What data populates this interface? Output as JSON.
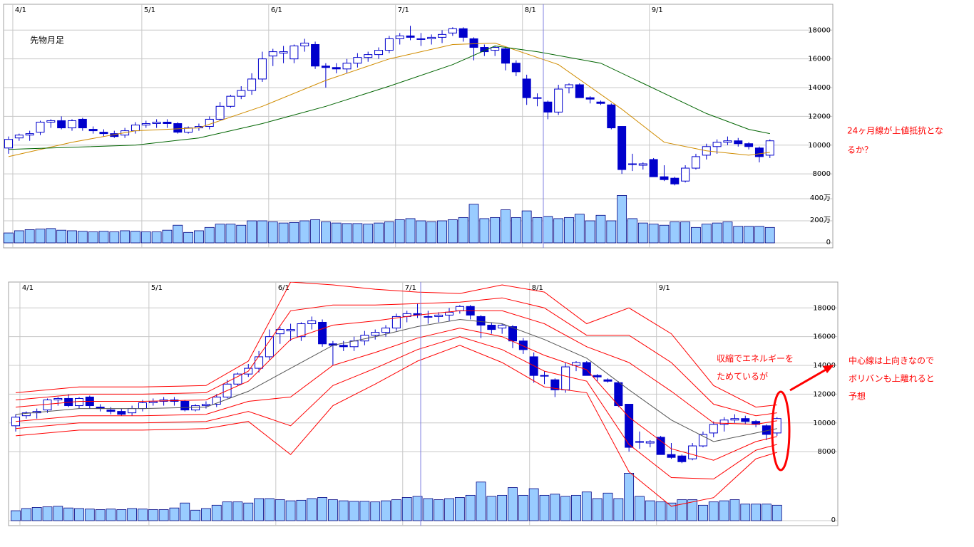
{
  "chart_data": [
    {
      "type": "candlestick",
      "xticks": [
        {
          "value": 0.4,
          "label": "4/1"
        },
        {
          "value": 12.6,
          "label": "5/1"
        },
        {
          "value": 24.6,
          "label": "6/1"
        },
        {
          "value": 36.6,
          "label": "7/1"
        },
        {
          "value": 48.6,
          "label": "8/1"
        },
        {
          "value": 60.6,
          "label": "9/1"
        }
      ],
      "ylim": [
        3200,
        19700
      ],
      "yticks": [
        8000,
        10000,
        12000,
        14000,
        16000,
        18000
      ],
      "y2lim": [
        0,
        2150
      ],
      "y2ticks": [
        0,
        {
          "value": 200,
          "label": "200万"
        },
        {
          "value": 400,
          "label": "400万"
        }
      ],
      "grid": true,
      "grid_color": "#c8c8c8",
      "candle_color": "#0000cc",
      "up_fill": "#ffffff",
      "volume_color": "#99ccff",
      "open": [
        9800,
        10500,
        10700,
        10900,
        11600,
        11700,
        11200,
        11800,
        11100,
        10900,
        10800,
        10700,
        11000,
        11400,
        11500,
        11600,
        11500,
        10900,
        11200,
        11300,
        11800,
        12700,
        13400,
        13800,
        14600,
        16200,
        16400,
        16000,
        16900,
        17000,
        15500,
        15400,
        15300,
        15700,
        16100,
        16300,
        16600,
        17400,
        17600,
        17400,
        17400,
        17500,
        17800,
        18100,
        17400,
        16800,
        16600,
        16700,
        15700,
        14600,
        13300,
        13000,
        12300,
        14000,
        14200,
        13300,
        13000,
        12800,
        11300,
        8700,
        8600,
        9000,
        7800,
        7700,
        7500,
        8400,
        9300,
        9900,
        10200,
        10300,
        10100,
        9800,
        9300
      ],
      "high": [
        10600,
        10800,
        11000,
        11700,
        11800,
        12000,
        11800,
        11900,
        11300,
        11100,
        11000,
        11200,
        11600,
        11700,
        11800,
        11800,
        11600,
        11300,
        11500,
        12000,
        13000,
        13500,
        14100,
        15000,
        16500,
        16700,
        16900,
        17000,
        17400,
        17200,
        15700,
        15700,
        16000,
        16400,
        16500,
        16800,
        17600,
        17800,
        18300,
        17800,
        17700,
        18000,
        18200,
        18200,
        17500,
        17000,
        16900,
        16800,
        15900,
        14900,
        13600,
        13100,
        14200,
        14300,
        14300,
        13400,
        13100,
        12900,
        11300,
        9400,
        8800,
        9100,
        8600,
        7800,
        8600,
        9400,
        10100,
        10400,
        10600,
        10500,
        10200,
        9900,
        10400
      ],
      "low": [
        9400,
        10300,
        10300,
        10700,
        11200,
        11100,
        11000,
        11000,
        10800,
        10600,
        10500,
        10500,
        10800,
        11200,
        11200,
        11200,
        10800,
        10800,
        11000,
        11100,
        11700,
        12600,
        13200,
        13500,
        14400,
        15500,
        15700,
        15700,
        16500,
        15300,
        14000,
        15000,
        15000,
        15400,
        15800,
        16000,
        16400,
        17000,
        17300,
        16900,
        17000,
        17100,
        17600,
        17200,
        15900,
        16200,
        16200,
        15200,
        14800,
        12800,
        12700,
        11800,
        12100,
        13600,
        13300,
        12900,
        12800,
        11100,
        8000,
        8200,
        8300,
        7800,
        7500,
        7200,
        7400,
        8300,
        9000,
        9400,
        10000,
        9900,
        9700,
        8800,
        9100
      ],
      "close": [
        10400,
        10700,
        10800,
        11600,
        11700,
        11200,
        11700,
        11200,
        11000,
        10800,
        10600,
        11000,
        11400,
        11500,
        11600,
        11500,
        10900,
        11200,
        11300,
        11800,
        12700,
        13400,
        13800,
        14600,
        16000,
        16500,
        16500,
        16900,
        17100,
        15500,
        15400,
        15300,
        15700,
        16100,
        16300,
        16600,
        17400,
        17600,
        17500,
        17400,
        17500,
        17700,
        18100,
        17500,
        16800,
        16500,
        16800,
        15700,
        15100,
        13300,
        13300,
        12300,
        13900,
        14200,
        13300,
        13200,
        12900,
        11200,
        8300,
        8700,
        8700,
        7800,
        7600,
        7300,
        8400,
        9200,
        9900,
        10200,
        10300,
        10100,
        9900,
        9200,
        10300
      ],
      "volume": [
        90,
        110,
        120,
        125,
        130,
        115,
        110,
        105,
        100,
        105,
        100,
        110,
        105,
        100,
        100,
        115,
        160,
        95,
        110,
        140,
        170,
        170,
        160,
        200,
        200,
        190,
        180,
        185,
        200,
        210,
        190,
        180,
        175,
        175,
        170,
        180,
        190,
        210,
        220,
        200,
        190,
        200,
        210,
        230,
        350,
        220,
        230,
        300,
        230,
        290,
        230,
        240,
        220,
        230,
        260,
        200,
        250,
        200,
        430,
        220,
        180,
        170,
        160,
        190,
        190,
        140,
        170,
        180,
        190,
        150,
        150,
        150,
        140
      ],
      "lines": [
        {
          "color": "#d08c00",
          "x": [
            0,
            6,
            12,
            18,
            24,
            30,
            36,
            42,
            46,
            52,
            58,
            62,
            66,
            70,
            72
          ],
          "values": [
            9200,
            10200,
            11000,
            11200,
            12700,
            14500,
            16000,
            17000,
            17100,
            15600,
            12500,
            10200,
            9600,
            9300,
            9500
          ]
        },
        {
          "color": "#006400",
          "x": [
            0,
            12,
            18,
            24,
            30,
            36,
            42,
            46,
            50,
            56,
            60,
            66,
            70,
            72
          ],
          "values": [
            9700,
            10000,
            10500,
            11500,
            12700,
            14100,
            15600,
            16900,
            16500,
            15700,
            14300,
            12200,
            11100,
            10800
          ]
        }
      ],
      "annotations": [
        {
          "color": "#000000",
          "lines": [
            "先物月足"
          ]
        },
        {
          "color": "#ff0000",
          "lines": [
            "24ヶ月線が上値抵抗とな",
            "るか？"
          ]
        }
      ]
    },
    {
      "type": "candlestick",
      "xticks": [
        {
          "value": 0.4,
          "label": "4/1"
        },
        {
          "value": 12.6,
          "label": "5/1"
        },
        {
          "value": 24.6,
          "label": "6/1"
        },
        {
          "value": 36.6,
          "label": "7/1"
        },
        {
          "value": 48.6,
          "label": "8/1"
        },
        {
          "value": 60.6,
          "label": "9/1"
        }
      ],
      "ylim": [
        3200,
        19700
      ],
      "yticks": [
        8000,
        10000,
        12000,
        14000,
        16000,
        18000
      ],
      "y2lim": [
        0,
        2150
      ],
      "y2ticks": [
        0
      ],
      "grid": true,
      "grid_color": "#c8c8c8",
      "candle_color": "#0000cc",
      "up_fill": "#ffffff",
      "volume_color": "#99ccff",
      "open": [
        9800,
        10500,
        10700,
        10900,
        11600,
        11700,
        11200,
        11800,
        11100,
        10900,
        10800,
        10700,
        11000,
        11400,
        11500,
        11600,
        11500,
        10900,
        11200,
        11300,
        11800,
        12700,
        13400,
        13800,
        14600,
        16200,
        16400,
        16000,
        16900,
        17000,
        15500,
        15400,
        15300,
        15700,
        16100,
        16300,
        16600,
        17400,
        17600,
        17400,
        17400,
        17500,
        17800,
        18100,
        17400,
        16800,
        16600,
        16700,
        15700,
        14600,
        13300,
        13000,
        12300,
        14000,
        14200,
        13300,
        13000,
        12800,
        11300,
        8700,
        8600,
        9000,
        7800,
        7700,
        7500,
        8400,
        9300,
        9900,
        10200,
        10300,
        10100,
        9800,
        9300
      ],
      "high": [
        10600,
        10800,
        11000,
        11700,
        11800,
        12000,
        11800,
        11900,
        11300,
        11100,
        11000,
        11200,
        11600,
        11700,
        11800,
        11800,
        11600,
        11300,
        11500,
        12000,
        13000,
        13500,
        14100,
        15000,
        16500,
        16700,
        16900,
        17000,
        17400,
        17200,
        15700,
        15700,
        16000,
        16400,
        16500,
        16800,
        17600,
        17800,
        18300,
        17800,
        17700,
        18000,
        18200,
        18200,
        17500,
        17000,
        16900,
        16800,
        15900,
        14900,
        13600,
        13100,
        14200,
        14300,
        14300,
        13400,
        13100,
        12900,
        11300,
        9400,
        8800,
        9100,
        8600,
        7800,
        8600,
        9400,
        10100,
        10400,
        10600,
        10500,
        10200,
        9900,
        10400
      ],
      "low": [
        9400,
        10300,
        10300,
        10700,
        11200,
        11100,
        11000,
        11000,
        10800,
        10600,
        10500,
        10500,
        10800,
        11200,
        11200,
        11200,
        10800,
        10800,
        11000,
        11100,
        11700,
        12600,
        13200,
        13500,
        14400,
        15500,
        15700,
        15700,
        16500,
        15300,
        14000,
        15000,
        15000,
        15400,
        15800,
        16000,
        16400,
        17000,
        17300,
        16900,
        17000,
        17100,
        17600,
        17200,
        15900,
        16200,
        16200,
        15200,
        14800,
        12800,
        12700,
        11800,
        12100,
        13600,
        13300,
        12900,
        12800,
        11100,
        8000,
        8200,
        8300,
        7800,
        7500,
        7200,
        7400,
        8300,
        9000,
        9400,
        10000,
        9900,
        9700,
        8800,
        9100
      ],
      "close": [
        10400,
        10700,
        10800,
        11600,
        11700,
        11200,
        11700,
        11200,
        11000,
        10800,
        10600,
        11000,
        11400,
        11500,
        11600,
        11500,
        10900,
        11200,
        11300,
        11800,
        12700,
        13400,
        13800,
        14600,
        16000,
        16500,
        16500,
        16900,
        17100,
        15500,
        15400,
        15300,
        15700,
        16100,
        16300,
        16600,
        17400,
        17600,
        17500,
        17400,
        17500,
        17700,
        18100,
        17500,
        16800,
        16500,
        16800,
        15700,
        15100,
        13300,
        13300,
        12300,
        13900,
        14200,
        13300,
        13200,
        12900,
        11200,
        8300,
        8700,
        8700,
        7800,
        7600,
        7300,
        8400,
        9200,
        9900,
        10200,
        10300,
        10100,
        9900,
        9200,
        10300
      ],
      "volume": [
        90,
        110,
        120,
        125,
        130,
        115,
        110,
        105,
        100,
        105,
        100,
        110,
        105,
        100,
        100,
        115,
        160,
        95,
        110,
        140,
        170,
        170,
        160,
        200,
        200,
        190,
        180,
        185,
        200,
        210,
        190,
        180,
        175,
        175,
        170,
        180,
        190,
        210,
        220,
        200,
        190,
        200,
        210,
        230,
        350,
        220,
        230,
        300,
        230,
        290,
        230,
        240,
        220,
        230,
        260,
        200,
        250,
        200,
        430,
        220,
        180,
        170,
        160,
        190,
        190,
        140,
        170,
        180,
        190,
        150,
        150,
        150,
        140
      ],
      "lines": [
        {
          "color": "#ff0000",
          "x": [
            0,
            6,
            12,
            18,
            22,
            26,
            30,
            34,
            38,
            42,
            46,
            50,
            54,
            58,
            62,
            66,
            70,
            72
          ],
          "values": [
            12100,
            12500,
            12500,
            12600,
            14300,
            19800,
            19600,
            19300,
            19100,
            19000,
            19600,
            19100,
            16900,
            18000,
            16200,
            12600,
            11100,
            11250
          ]
        },
        {
          "color": "#ff0000",
          "x": [
            0,
            6,
            12,
            18,
            22,
            26,
            30,
            34,
            38,
            42,
            46,
            50,
            54,
            58,
            62,
            66,
            70,
            72
          ],
          "values": [
            11600,
            12000,
            12000,
            12100,
            13600,
            17800,
            18200,
            18200,
            18300,
            18400,
            18700,
            18000,
            16100,
            16100,
            14200,
            11300,
            10500,
            10700
          ]
        },
        {
          "color": "#ff0000",
          "x": [
            0,
            6,
            12,
            18,
            22,
            26,
            30,
            34,
            38,
            42,
            46,
            50,
            54,
            58,
            62,
            66,
            70,
            72
          ],
          "values": [
            11100,
            11500,
            11500,
            11600,
            12900,
            15800,
            16800,
            17100,
            17500,
            17800,
            17800,
            16900,
            15300,
            14200,
            12200,
            10000,
            9900,
            10150
          ]
        },
        {
          "color": "#555555",
          "x": [
            0,
            6,
            12,
            18,
            22,
            26,
            30,
            34,
            38,
            42,
            46,
            50,
            54,
            58,
            62,
            66,
            70,
            72
          ],
          "values": [
            10600,
            11000,
            11000,
            11100,
            12200,
            13800,
            15400,
            16000,
            16700,
            17200,
            16900,
            15800,
            14500,
            12300,
            10200,
            8700,
            9300,
            9600
          ]
        },
        {
          "color": "#ff0000",
          "x": [
            0,
            6,
            12,
            18,
            22,
            26,
            30,
            34,
            38,
            42,
            46,
            50,
            54,
            58,
            62,
            66,
            70,
            72
          ],
          "values": [
            10100,
            10500,
            10500,
            10600,
            11500,
            11800,
            14000,
            14900,
            15900,
            16600,
            16000,
            14700,
            13700,
            10400,
            8200,
            7400,
            8700,
            9050
          ]
        },
        {
          "color": "#ff0000",
          "x": [
            0,
            6,
            12,
            18,
            22,
            26,
            30,
            34,
            38,
            42,
            46,
            50,
            54,
            58,
            62,
            66,
            70,
            72
          ],
          "values": [
            9600,
            10000,
            10000,
            10100,
            10800,
            9800,
            12600,
            13800,
            15100,
            16000,
            15100,
            13600,
            12900,
            8500,
            6200,
            6100,
            8100,
            8500
          ]
        },
        {
          "color": "#ff0000",
          "x": [
            0,
            6,
            12,
            18,
            22,
            26,
            30,
            34,
            38,
            42,
            46,
            50,
            54,
            58,
            62,
            66,
            70,
            72
          ],
          "values": [
            9100,
            9500,
            9500,
            9600,
            10100,
            7800,
            11200,
            12700,
            14300,
            15400,
            14200,
            12500,
            12100,
            6600,
            4200,
            4800,
            7500,
            7950
          ]
        }
      ],
      "annotations": [
        {
          "color": "#ff0000",
          "lines": [
            "収縮でエネルギーを",
            "ためているが"
          ]
        },
        {
          "color": "#ff0000",
          "lines": [
            "中心線は上向きなので",
            "ボリバンも上離れると",
            "予想"
          ]
        }
      ]
    }
  ]
}
